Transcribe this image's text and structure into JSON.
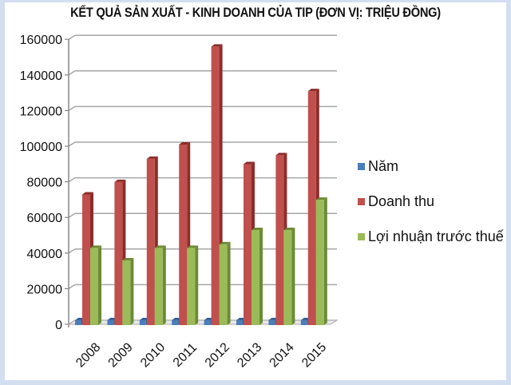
{
  "title": "KẾT QUẢ SẢN XUẤT - KINH DOANH CỦA TIP (ĐƠN VỊ: TRIỆU ĐỒNG)",
  "colors": {
    "nam": "#4a7ebb",
    "doanh_thu": "#c0504d",
    "loi_nhuan": "#9bbb59",
    "gridline": "#a6a6a6",
    "frame": "#d3def0"
  },
  "legend": [
    {
      "label": "Năm",
      "color": "#4a7ebb"
    },
    {
      "label": "Doanh thu",
      "color": "#c0504d"
    },
    {
      "label": "Lợi nhuận trước thuế",
      "color": "#9bbb59"
    }
  ],
  "chart_data": {
    "type": "bar",
    "title": "KẾT QUẢ SẢN XUẤT - KINH DOANH CỦA TIP (ĐƠN VỊ: TRIỆU ĐỒNG)",
    "xlabel": "",
    "ylabel": "",
    "categories": [
      "2008",
      "2009",
      "2010",
      "2011",
      "2012",
      "2013",
      "2014",
      "2015"
    ],
    "series": [
      {
        "name": "Năm",
        "values": [
          2008,
          2009,
          2010,
          2011,
          2012,
          2013,
          2014,
          2015
        ]
      },
      {
        "name": "Doanh thu",
        "values": [
          72000,
          79000,
          92000,
          100000,
          155000,
          89000,
          94000,
          130000
        ]
      },
      {
        "name": "Lợi nhuận trước thuế",
        "values": [
          42000,
          35000,
          42000,
          42000,
          44000,
          52000,
          52000,
          69000
        ]
      }
    ],
    "yticks": [
      0,
      20000,
      40000,
      60000,
      80000,
      100000,
      120000,
      140000,
      160000
    ],
    "ylim": [
      0,
      160000
    ],
    "grid": true,
    "legend_position": "right",
    "style": "3d-clustered-column"
  }
}
